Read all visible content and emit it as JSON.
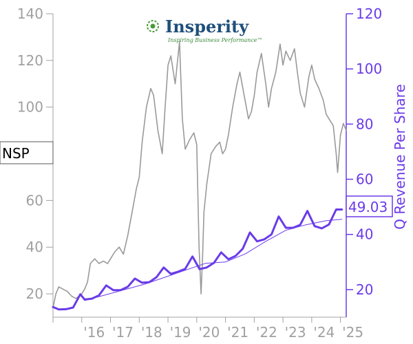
{
  "logo": {
    "name": "Insperity",
    "tagline": "Inspiring Business Performance™",
    "colors": {
      "text": "#1f4f7a",
      "tagline": "#3a8a3a",
      "mark": "#4a9a3a"
    }
  },
  "ticker": "NSP",
  "last_value_label": "49.03",
  "colors": {
    "price": "#999999",
    "revenue": "#6a3be8",
    "axis_left": "#a0a0a0",
    "axis_right": "#6a3be8"
  },
  "chart_data": {
    "type": "line",
    "xlabel": "",
    "ylabel_left": "",
    "ylabel_right": "Q Revenue Per Share",
    "x_ticks": [
      "'16",
      "'17",
      "'18",
      "'19",
      "'20",
      "'21",
      "'22",
      "'23",
      "'24",
      "'25"
    ],
    "x_range": [
      2015.0,
      2025.2
    ],
    "y_left_ticks": [
      "20",
      "40",
      "60",
      "80",
      "100",
      "120",
      "140"
    ],
    "y_left_range": [
      10,
      140
    ],
    "y_right_ticks": [
      "20",
      "40",
      "60",
      "80",
      "100",
      "120"
    ],
    "y_right_range": [
      10,
      120
    ],
    "series": [
      {
        "axis": "left",
        "style": "price",
        "x": [
          2015.0,
          2015.1,
          2015.2,
          2015.35,
          2015.5,
          2015.65,
          2015.8,
          2015.9,
          2016.0,
          2016.1,
          2016.2,
          2016.3,
          2016.45,
          2016.6,
          2016.75,
          2016.9,
          2017.0,
          2017.15,
          2017.3,
          2017.45,
          2017.6,
          2017.75,
          2017.9,
          2018.0,
          2018.1,
          2018.25,
          2018.4,
          2018.5,
          2018.65,
          2018.8,
          2018.9,
          2019.0,
          2019.1,
          2019.25,
          2019.4,
          2019.5,
          2019.6,
          2019.75,
          2019.9,
          2020.0,
          2020.08,
          2020.15,
          2020.2,
          2020.25,
          2020.35,
          2020.5,
          2020.65,
          2020.8,
          2020.9,
          2021.0,
          2021.1,
          2021.25,
          2021.4,
          2021.5,
          2021.65,
          2021.8,
          2021.9,
          2022.0,
          2022.1,
          2022.25,
          2022.4,
          2022.5,
          2022.6,
          2022.75,
          2022.9,
          2023.0,
          2023.1,
          2023.25,
          2023.4,
          2023.5,
          2023.6,
          2023.75,
          2023.9,
          2024.0,
          2024.1,
          2024.25,
          2024.4,
          2024.5,
          2024.6,
          2024.75,
          2024.85,
          2024.9,
          2025.0,
          2025.1,
          2025.2
        ],
        "y": [
          14,
          20,
          23,
          22,
          21,
          19,
          18,
          19,
          20,
          22,
          25,
          33,
          35,
          33,
          34,
          33,
          35,
          38,
          40,
          37,
          45,
          55,
          65,
          70,
          85,
          100,
          108,
          105,
          90,
          80,
          100,
          118,
          122,
          110,
          128,
          95,
          82,
          86,
          89,
          84,
          40,
          20,
          35,
          55,
          67,
          80,
          83,
          85,
          80,
          82,
          88,
          100,
          110,
          115,
          105,
          95,
          98,
          105,
          115,
          123,
          110,
          100,
          108,
          115,
          127,
          118,
          124,
          120,
          125,
          115,
          106,
          100,
          113,
          118,
          112,
          108,
          103,
          97,
          95,
          92,
          80,
          72,
          88,
          93,
          90
        ]
      },
      {
        "axis": "right",
        "style": "revenue",
        "x": [
          2015.0,
          2015.2,
          2015.45,
          2015.7,
          2015.95,
          2016.1,
          2016.35,
          2016.6,
          2016.85,
          2017.1,
          2017.35,
          2017.6,
          2017.85,
          2018.1,
          2018.35,
          2018.6,
          2018.85,
          2019.1,
          2019.35,
          2019.6,
          2019.85,
          2020.1,
          2020.35,
          2020.6,
          2020.85,
          2021.1,
          2021.35,
          2021.6,
          2021.85,
          2022.1,
          2022.35,
          2022.6,
          2022.85,
          2023.1,
          2023.35,
          2023.6,
          2023.85,
          2024.1,
          2024.35,
          2024.6,
          2024.85,
          2025.05
        ],
        "y": [
          13.7,
          12.8,
          12.9,
          13.5,
          18.3,
          16.4,
          16.7,
          17.9,
          21.5,
          19.8,
          19.8,
          21.0,
          24.0,
          22.5,
          22.7,
          24.5,
          28.0,
          25.7,
          26.5,
          27.5,
          32.0,
          27.4,
          28.0,
          29.7,
          33.5,
          31.0,
          32.2,
          34.8,
          40.7,
          37.5,
          38.2,
          40.0,
          46.5,
          42.4,
          42.4,
          43.5,
          48.5,
          43.0,
          42.2,
          43.6,
          49.03,
          49.03
        ]
      },
      {
        "axis": "right",
        "style": "trend",
        "x": [
          2016.1,
          2016.8,
          2017.5,
          2018.2,
          2018.9,
          2019.6,
          2020.3,
          2021.0,
          2021.7,
          2022.4,
          2023.1,
          2023.8,
          2024.5,
          2025.05
        ],
        "y": [
          16.0,
          18.0,
          20.0,
          22.0,
          24.5,
          27.0,
          29.5,
          30.0,
          33.0,
          37.5,
          41.5,
          43.5,
          45.0,
          45.5
        ]
      }
    ],
    "grid": false,
    "legend": "none"
  }
}
